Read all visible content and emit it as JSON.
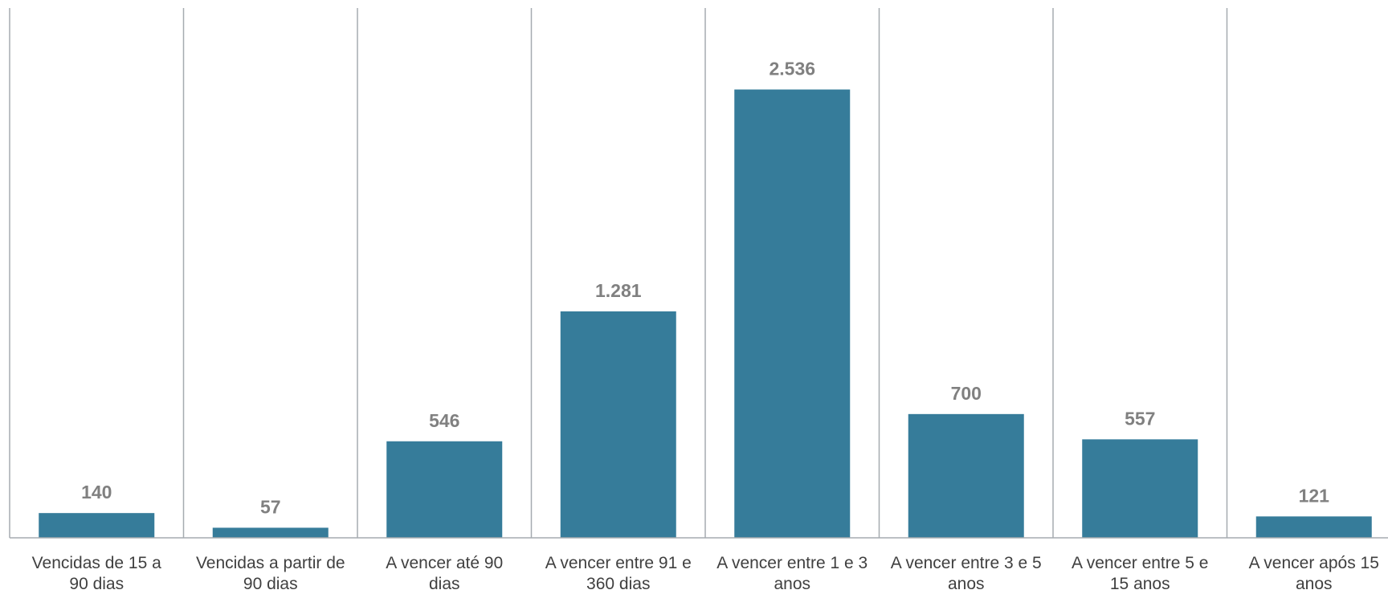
{
  "chart_data": {
    "type": "bar",
    "title": "",
    "xlabel": "",
    "ylabel": "",
    "categories": [
      [
        "Vencidas de 15 a",
        "90 dias"
      ],
      [
        "Vencidas a partir de",
        "90 dias"
      ],
      [
        "A vencer até 90",
        "dias"
      ],
      [
        "A vencer entre 91 e",
        "360 dias"
      ],
      [
        "A vencer entre 1 e 3",
        "anos"
      ],
      [
        "A vencer entre 3 e 5",
        "anos"
      ],
      [
        "A vencer entre 5 e",
        "15 anos"
      ],
      [
        "A vencer após 15",
        "anos"
      ]
    ],
    "values": [
      140,
      57,
      546,
      1281,
      2536,
      700,
      557,
      121
    ],
    "value_labels": [
      "140",
      "57",
      "546",
      "1.281",
      "2.536",
      "700",
      "557",
      "121"
    ],
    "ylim": [
      0,
      3000
    ],
    "grid": "vertical category separators",
    "legend": "none",
    "bar_color": "#367C9A",
    "label_color": "#808080",
    "axis_color": "#A6ABB0"
  }
}
